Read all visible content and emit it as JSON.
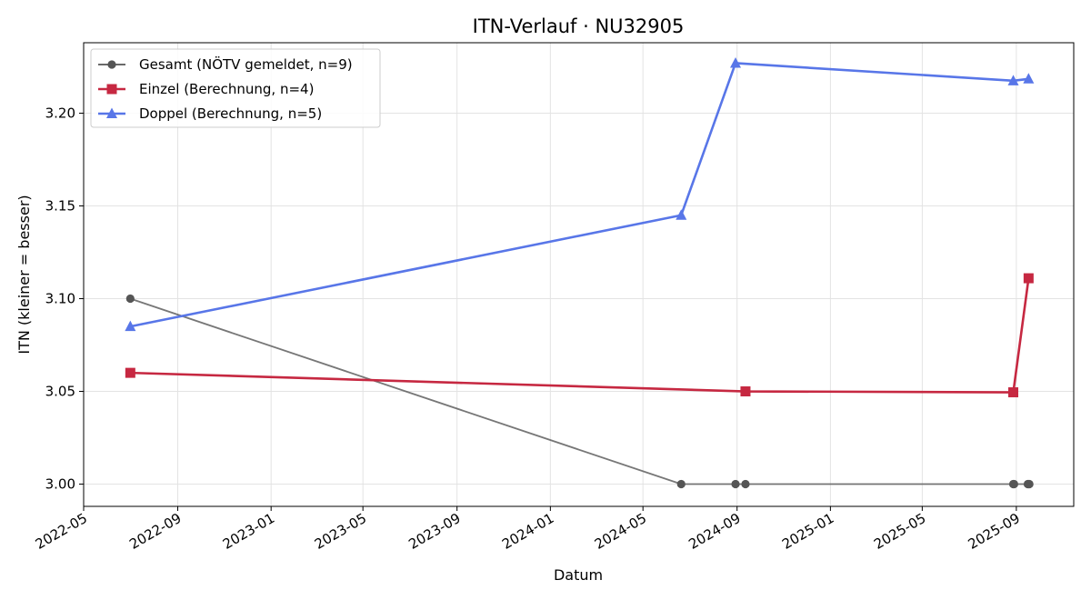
{
  "chart_data": {
    "type": "line",
    "title": "ITN-Verlauf · NU32905",
    "xlabel": "Datum",
    "ylabel": "ITN  (kleiner = besser)",
    "xlim": [
      "2022-05-01",
      "2025-11-15"
    ],
    "ylim": [
      2.988,
      3.238
    ],
    "yticks": [
      "3.00",
      "3.05",
      "3.10",
      "3.15",
      "3.20"
    ],
    "xticks": [
      "2022-05",
      "2022-09",
      "2023-01",
      "2023-05",
      "2023-09",
      "2024-01",
      "2024-05",
      "2024-09",
      "2025-01",
      "2025-05",
      "2025-09"
    ],
    "grid": true,
    "legend_position": "top-left",
    "series": [
      {
        "name": "Gesamt (NÖTV gemeldet, n=9)",
        "color": "#555555",
        "marker": "circle",
        "points": [
          {
            "x": "2022-07-01",
            "y": 3.1
          },
          {
            "x": "2024-06-20",
            "y": 3.0
          },
          {
            "x": "2024-08-30",
            "y": 3.0
          },
          {
            "x": "2024-09-12",
            "y": 3.0
          },
          {
            "x": "2025-08-28",
            "y": 3.0
          },
          {
            "x": "2025-08-29",
            "y": 3.0
          },
          {
            "x": "2025-09-16",
            "y": 3.0
          },
          {
            "x": "2025-09-17",
            "y": 3.0
          },
          {
            "x": "2025-09-18",
            "y": 3.0
          }
        ]
      },
      {
        "name": "Einzel (Berechnung, n=4)",
        "color": "#c62841",
        "marker": "square",
        "points": [
          {
            "x": "2022-07-01",
            "y": 3.06
          },
          {
            "x": "2024-09-12",
            "y": 3.05
          },
          {
            "x": "2025-08-28",
            "y": 3.0495
          },
          {
            "x": "2025-09-17",
            "y": 3.111
          }
        ]
      },
      {
        "name": "Doppel (Berechnung, n=5)",
        "color": "#5876e8",
        "marker": "triangle",
        "points": [
          {
            "x": "2022-07-01",
            "y": 3.085
          },
          {
            "x": "2024-06-20",
            "y": 3.145
          },
          {
            "x": "2024-08-30",
            "y": 3.227
          },
          {
            "x": "2025-08-28",
            "y": 3.2175
          },
          {
            "x": "2025-09-17",
            "y": 3.2185
          }
        ]
      }
    ]
  }
}
